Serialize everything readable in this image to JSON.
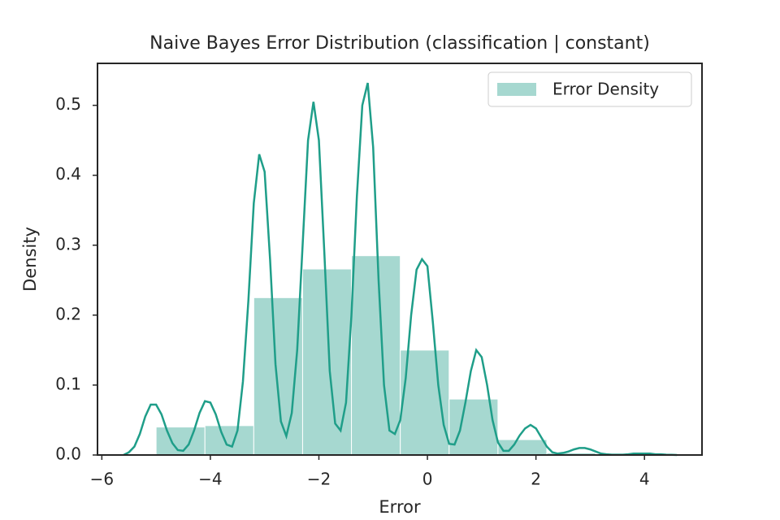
{
  "chart_data": {
    "type": "histogram",
    "title": "Naive Bayes Error Distribution (classification | constant)",
    "x_label": "Error",
    "y_label": "Density",
    "name": "Error Density",
    "color": "#a6d8d0",
    "bins": [
      -5,
      -4.1,
      -3.2,
      -2.3,
      -1.4,
      -0.5,
      0.4,
      1.3,
      2.2,
      3.1,
      4.0
    ],
    "values": [
      0.04,
      0.042,
      0.225,
      0.266,
      0.285,
      0.15,
      0.08,
      0.022,
      0.003,
      0.001
    ],
    "kde": {
      "color": "#1f9e89",
      "x": [
        -5.6,
        -5.5,
        -5.4,
        -5.3,
        -5.2,
        -5.1,
        -5.0,
        -4.9,
        -4.8,
        -4.7,
        -4.6,
        -4.5,
        -4.4,
        -4.3,
        -4.2,
        -4.1,
        -4.0,
        -3.9,
        -3.8,
        -3.7,
        -3.6,
        -3.5,
        -3.4,
        -3.3,
        -3.2,
        -3.1,
        -3.0,
        -2.9,
        -2.8,
        -2.7,
        -2.6,
        -2.5,
        -2.4,
        -2.3,
        -2.2,
        -2.1,
        -2.0,
        -1.9,
        -1.8,
        -1.7,
        -1.6,
        -1.5,
        -1.4,
        -1.3,
        -1.2,
        -1.1,
        -1.0,
        -0.9,
        -0.8,
        -0.7,
        -0.6,
        -0.5,
        -0.4,
        -0.3,
        -0.2,
        -0.1,
        0.0,
        0.1,
        0.2,
        0.3,
        0.4,
        0.5,
        0.6,
        0.7,
        0.8,
        0.9,
        1.0,
        1.1,
        1.2,
        1.3,
        1.4,
        1.5,
        1.6,
        1.7,
        1.8,
        1.9,
        2.0,
        2.1,
        2.2,
        2.3,
        2.4,
        2.5,
        2.6,
        2.7,
        2.8,
        2.9,
        3.0,
        3.1,
        3.2,
        3.3,
        3.4,
        3.5,
        3.6,
        3.7,
        3.8,
        3.9,
        4.0,
        4.1,
        4.2,
        4.3,
        4.4,
        4.5,
        4.6
      ],
      "values": [
        0,
        0.004,
        0.012,
        0.03,
        0.055,
        0.072,
        0.072,
        0.058,
        0.035,
        0.017,
        0.007,
        0.006,
        0.015,
        0.035,
        0.06,
        0.077,
        0.075,
        0.058,
        0.033,
        0.015,
        0.012,
        0.035,
        0.105,
        0.22,
        0.36,
        0.43,
        0.405,
        0.28,
        0.13,
        0.048,
        0.027,
        0.06,
        0.15,
        0.3,
        0.45,
        0.505,
        0.45,
        0.29,
        0.12,
        0.045,
        0.035,
        0.075,
        0.2,
        0.37,
        0.5,
        0.532,
        0.44,
        0.25,
        0.1,
        0.035,
        0.03,
        0.05,
        0.11,
        0.2,
        0.265,
        0.28,
        0.27,
        0.19,
        0.1,
        0.043,
        0.016,
        0.015,
        0.035,
        0.075,
        0.12,
        0.15,
        0.14,
        0.1,
        0.05,
        0.018,
        0.006,
        0.006,
        0.015,
        0.028,
        0.038,
        0.043,
        0.038,
        0.025,
        0.012,
        0.004,
        0.002,
        0.003,
        0.005,
        0.008,
        0.01,
        0.01,
        0.008,
        0.005,
        0.002,
        0.001,
        0.0005,
        0.0005,
        0.0005,
        0.001,
        0.002,
        0.002,
        0.002,
        0.002,
        0.001,
        0.001,
        0.0005,
        0.0003,
        0
      ]
    },
    "xlim": [
      -6.08,
      5.06
    ],
    "ylim": [
      0,
      0.56
    ],
    "xticks": [
      {
        "value": -6,
        "label": "−6"
      },
      {
        "value": -4,
        "label": "−4"
      },
      {
        "value": -2,
        "label": "−2"
      },
      0,
      2,
      4
    ],
    "yticks": [
      {
        "value": 0,
        "label": "0.0"
      },
      0.1,
      0.2,
      0.3,
      0.4,
      0.5
    ],
    "legend": "upper right"
  }
}
